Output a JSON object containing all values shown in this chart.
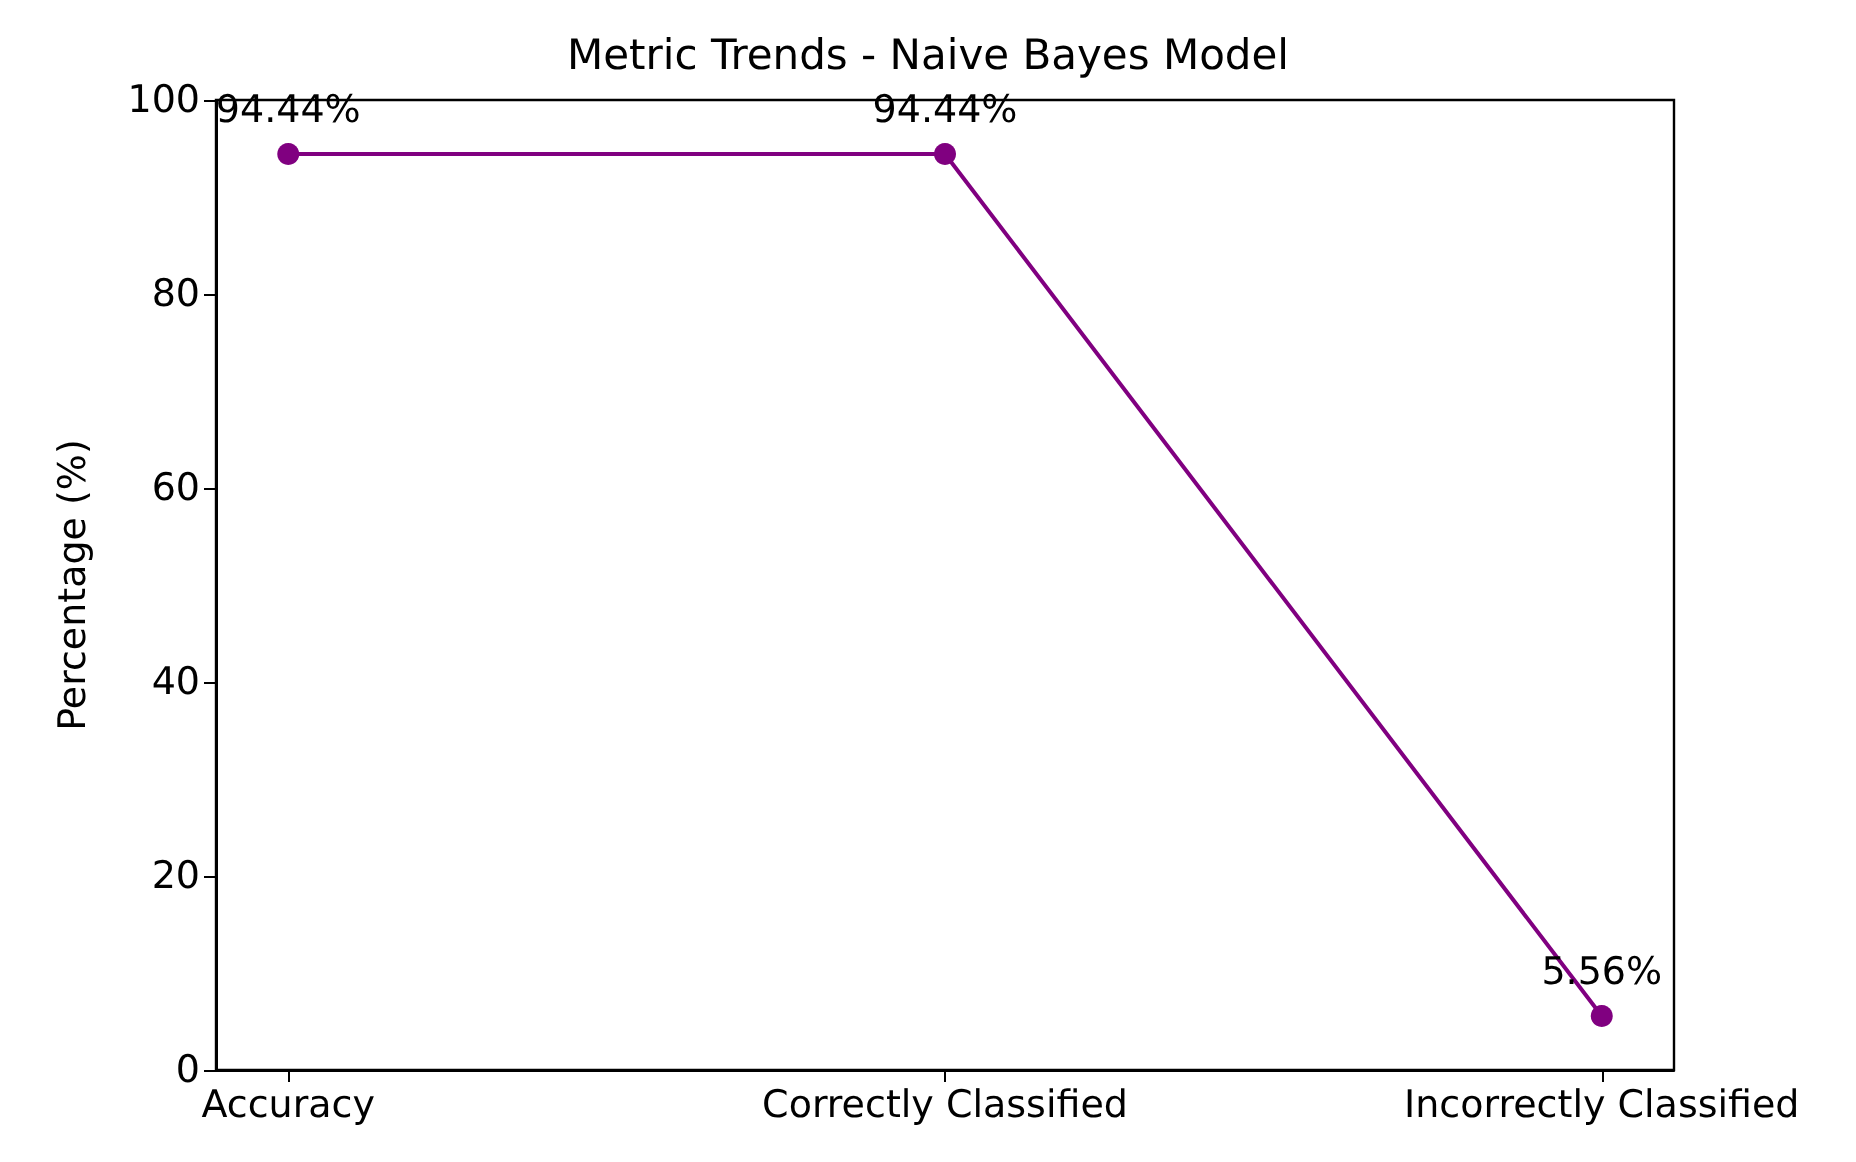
{
  "chart_data": {
    "type": "line",
    "title": "Metric Trends - Naive Bayes Model",
    "ylabel": "Percentage (%)",
    "categories": [
      "Accuracy",
      "Correctly Classified",
      "Incorrectly Classified"
    ],
    "series": [
      {
        "color": "#800080",
        "values": [
          94.44,
          94.44,
          5.56
        ],
        "value_labels": [
          "94.44%",
          "94.44%",
          "5.56%"
        ]
      }
    ],
    "ylim": [
      0,
      100
    ],
    "yticks": [
      0,
      20,
      40,
      60,
      80,
      100
    ],
    "marker": "circle",
    "line_style": "solid",
    "grid": false
  }
}
